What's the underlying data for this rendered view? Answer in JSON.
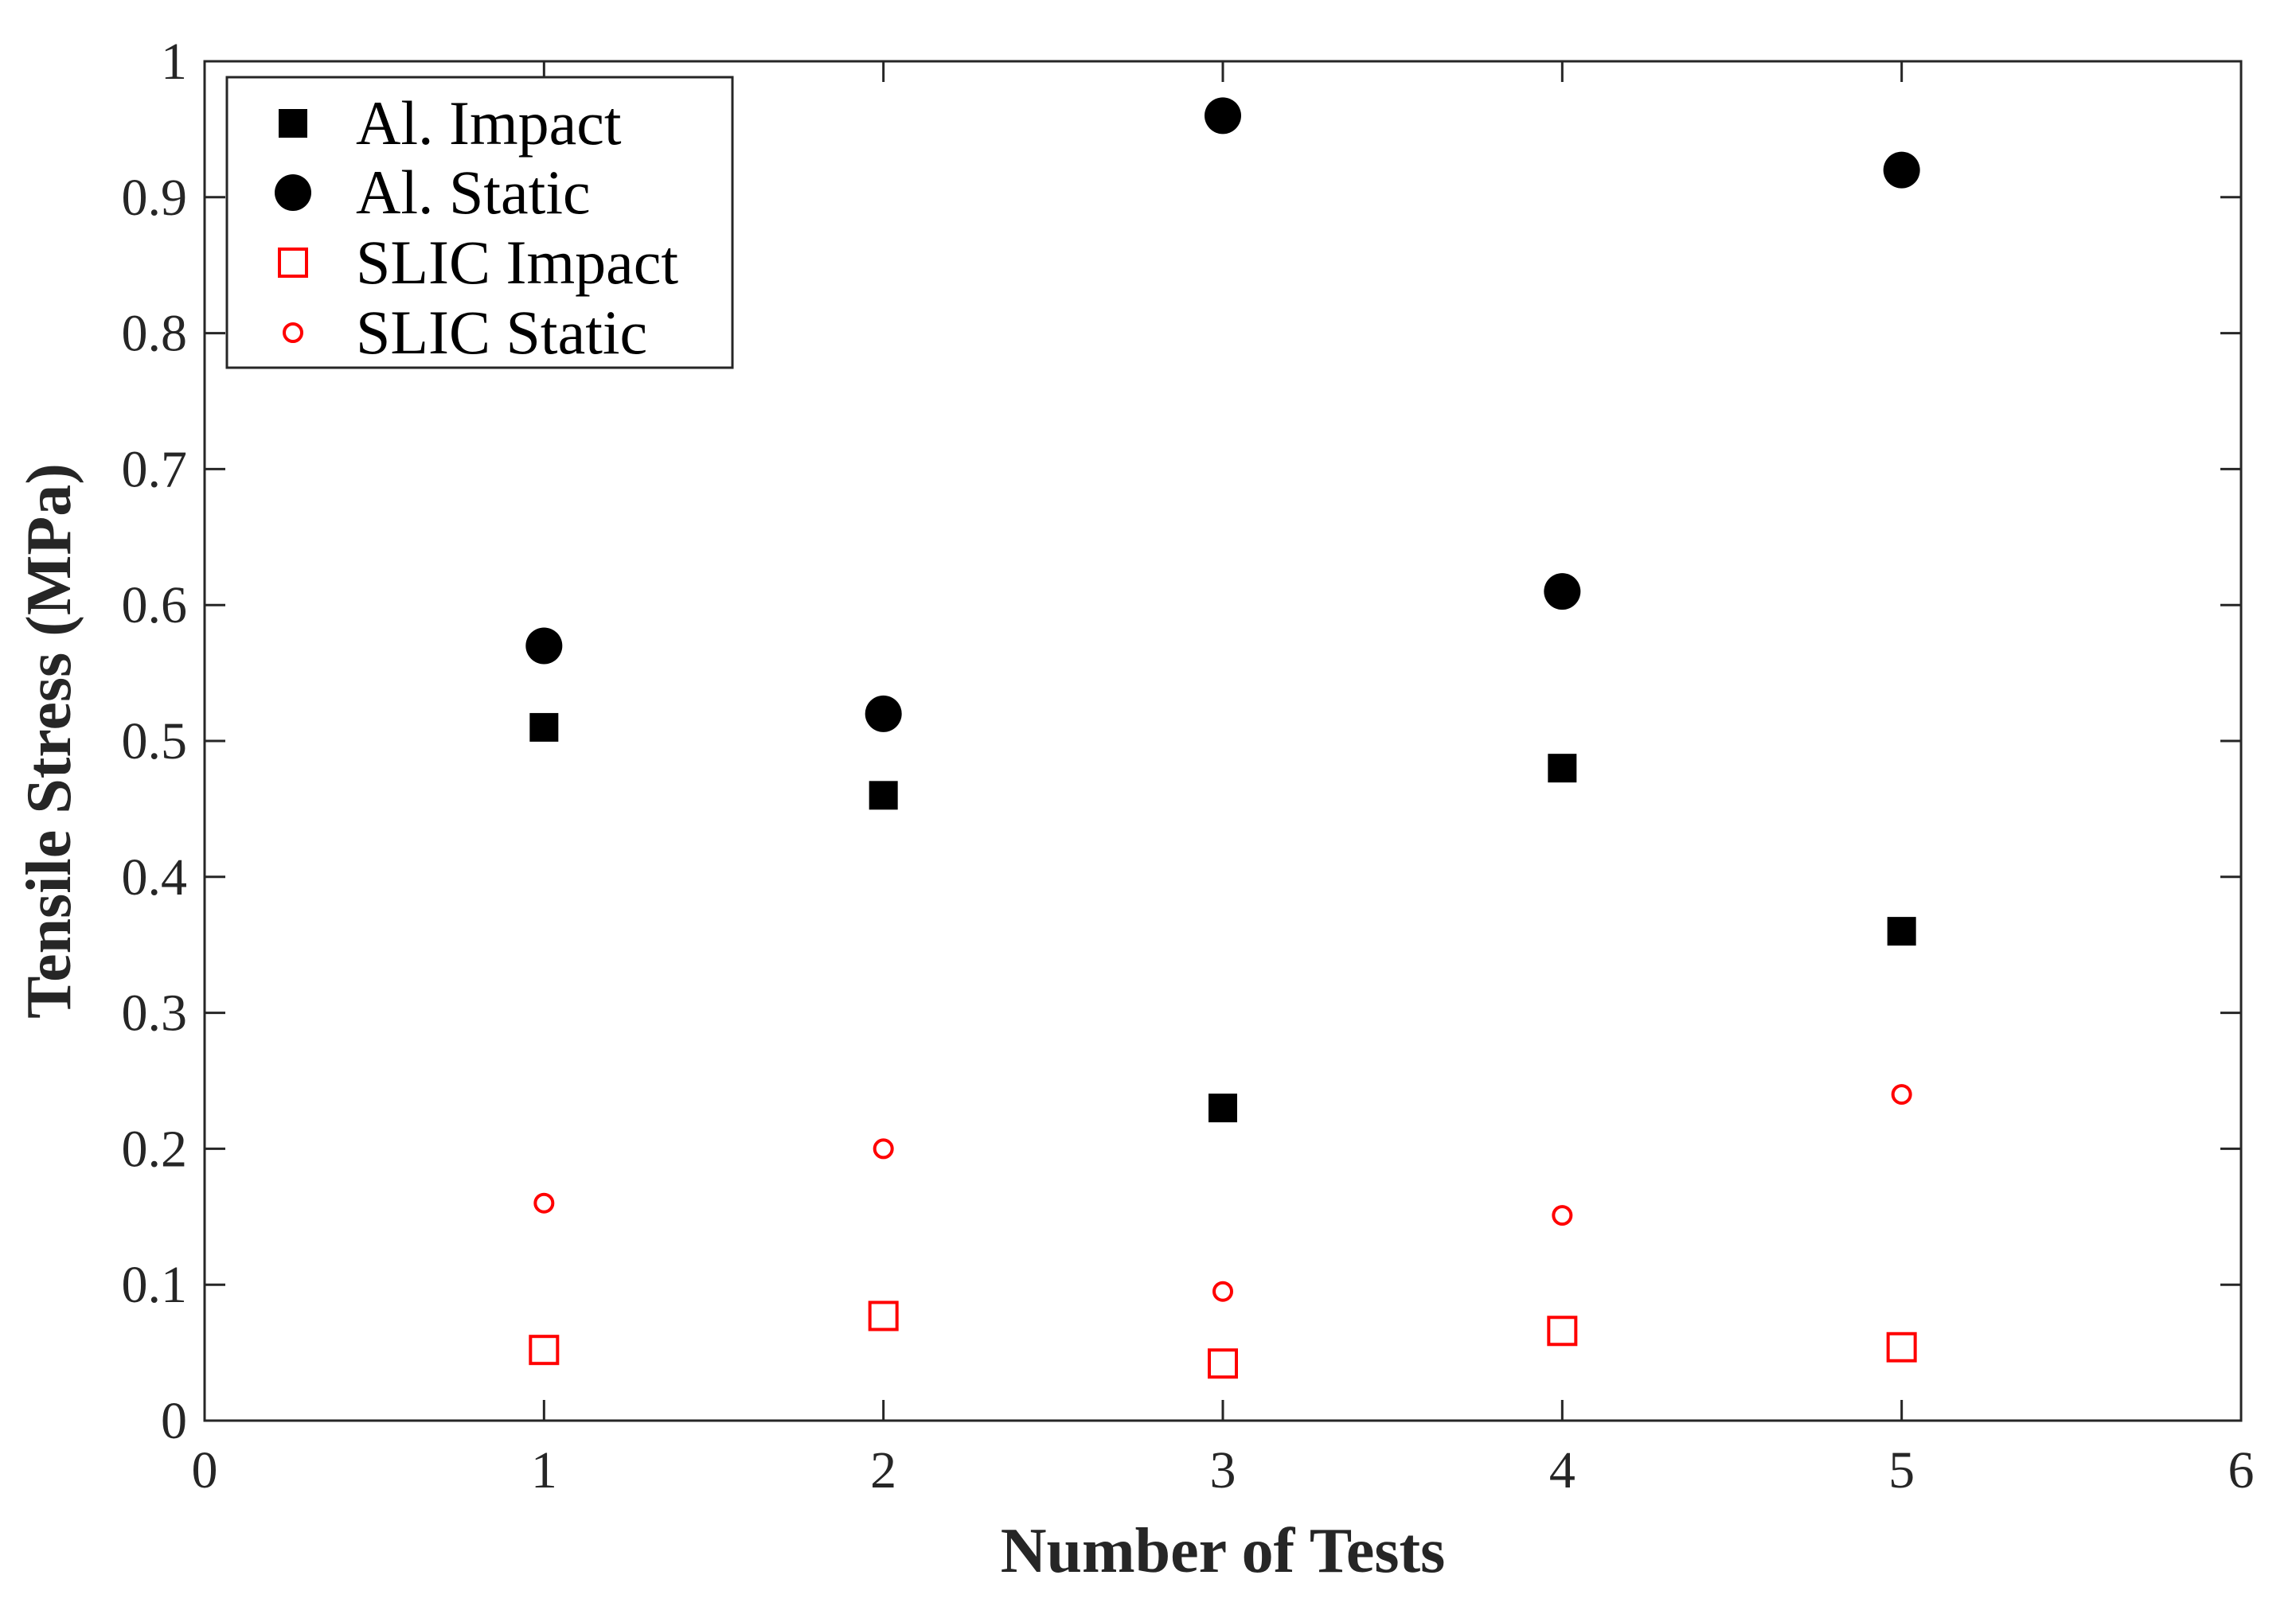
{
  "chart_data": {
    "type": "scatter",
    "title": "",
    "xlabel": "Number of Tests",
    "ylabel": "Tensile Stress (MPa)",
    "xlim": [
      0,
      6
    ],
    "ylim": [
      0,
      1
    ],
    "xticks": [
      "0",
      "1",
      "2",
      "3",
      "4",
      "5",
      "6"
    ],
    "yticks": [
      "0",
      "0.1",
      "0.2",
      "0.3",
      "0.4",
      "0.5",
      "0.6",
      "0.7",
      "0.8",
      "0.9",
      "1"
    ],
    "grid": false,
    "legend_position": "top-left",
    "x": [
      1,
      2,
      3,
      4,
      5
    ],
    "series": [
      {
        "name": "Al. Impact",
        "marker": "square",
        "filled": true,
        "color": "#000000",
        "values": [
          0.51,
          0.46,
          0.23,
          0.48,
          0.36
        ]
      },
      {
        "name": "Al. Static",
        "marker": "circle",
        "filled": true,
        "color": "#000000",
        "values": [
          0.57,
          0.52,
          0.96,
          0.61,
          0.92
        ]
      },
      {
        "name": "SLIC Impact",
        "marker": "square",
        "filled": false,
        "color": "#ff0000",
        "values": [
          0.052,
          0.077,
          0.042,
          0.066,
          0.054
        ]
      },
      {
        "name": "SLIC Static",
        "marker": "circle",
        "filled": false,
        "color": "#ff0000",
        "values": [
          0.16,
          0.2,
          0.095,
          0.151,
          0.24
        ]
      }
    ]
  }
}
